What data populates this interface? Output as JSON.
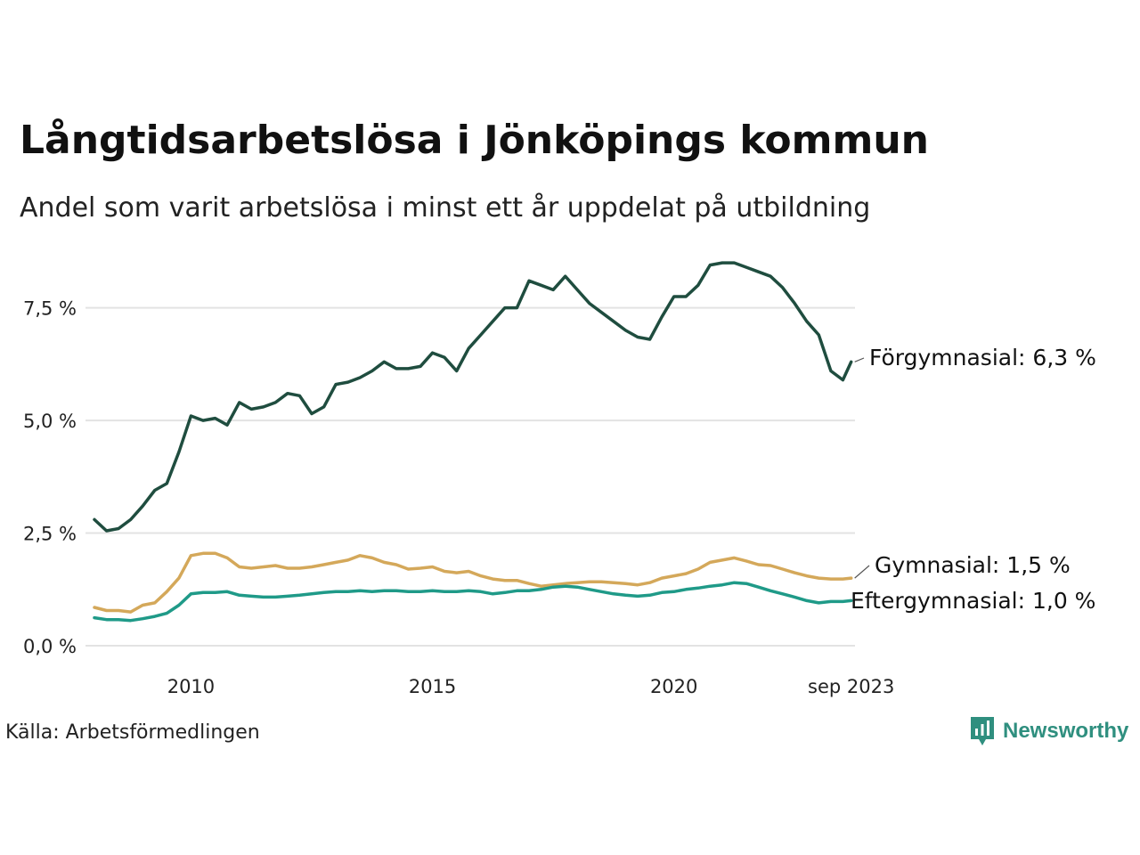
{
  "title": "Långtidsarbetslösa i Jönköpings kommun",
  "subtitle": "Andel som varit arbetslösa i minst ett år uppdelat på utbildning",
  "source": "Källa: Arbetsförmedlingen",
  "brand": {
    "name": "Newsworthy",
    "color": "#2f8f7f",
    "icon": "newsworthy-chart-icon"
  },
  "chart_data": {
    "type": "line",
    "title": "Långtidsarbetslösa i Jönköpings kommun",
    "xlabel": "",
    "ylabel": "",
    "x_range": [
      2008.0,
      2023.75
    ],
    "ylim": [
      0,
      8.6
    ],
    "y_ticks": [
      {
        "value": 0.0,
        "label": "0,0 %"
      },
      {
        "value": 2.5,
        "label": "2,5 %"
      },
      {
        "value": 5.0,
        "label": "5,0 %"
      },
      {
        "value": 7.5,
        "label": "7,5 %"
      }
    ],
    "x_ticks": [
      {
        "value": 2010.0,
        "label": "2010"
      },
      {
        "value": 2015.0,
        "label": "2015"
      },
      {
        "value": 2020.0,
        "label": "2020"
      },
      {
        "value": 2023.67,
        "label": "sep 2023"
      }
    ],
    "grid": true,
    "series": [
      {
        "name": "Förgymnasial",
        "end_label": "Förgymnasial: 6,3 %",
        "color": "#1f4d3f",
        "x": [
          2008.0,
          2008.25,
          2008.5,
          2008.75,
          2009.0,
          2009.25,
          2009.5,
          2009.75,
          2010.0,
          2010.25,
          2010.5,
          2010.75,
          2011.0,
          2011.25,
          2011.5,
          2011.75,
          2012.0,
          2012.25,
          2012.5,
          2012.75,
          2013.0,
          2013.25,
          2013.5,
          2013.75,
          2014.0,
          2014.25,
          2014.5,
          2014.75,
          2015.0,
          2015.25,
          2015.5,
          2015.75,
          2016.0,
          2016.25,
          2016.5,
          2016.75,
          2017.0,
          2017.25,
          2017.5,
          2017.75,
          2018.0,
          2018.25,
          2018.5,
          2018.75,
          2019.0,
          2019.25,
          2019.5,
          2019.75,
          2020.0,
          2020.25,
          2020.5,
          2020.75,
          2021.0,
          2021.25,
          2021.5,
          2021.75,
          2022.0,
          2022.25,
          2022.5,
          2022.75,
          2023.0,
          2023.25,
          2023.5,
          2023.67
        ],
        "values": [
          2.8,
          2.55,
          2.6,
          2.8,
          3.1,
          3.45,
          3.6,
          4.3,
          5.1,
          5.0,
          5.05,
          4.9,
          5.4,
          5.25,
          5.3,
          5.4,
          5.6,
          5.55,
          5.15,
          5.3,
          5.8,
          5.85,
          5.95,
          6.1,
          6.3,
          6.15,
          6.15,
          6.2,
          6.5,
          6.4,
          6.1,
          6.6,
          6.9,
          7.2,
          7.5,
          7.5,
          8.1,
          8.0,
          7.9,
          8.2,
          7.9,
          7.6,
          7.4,
          7.2,
          7.0,
          6.85,
          6.8,
          7.3,
          7.75,
          7.75,
          8.0,
          8.45,
          8.5,
          8.5,
          8.4,
          8.3,
          8.2,
          7.95,
          7.6,
          7.2,
          6.9,
          6.1,
          5.9,
          6.3
        ]
      },
      {
        "name": "Gymnasial",
        "end_label": "Gymnasial: 1,5 %",
        "color": "#d4a85a",
        "x": [
          2008.0,
          2008.25,
          2008.5,
          2008.75,
          2009.0,
          2009.25,
          2009.5,
          2009.75,
          2010.0,
          2010.25,
          2010.5,
          2010.75,
          2011.0,
          2011.25,
          2011.5,
          2011.75,
          2012.0,
          2012.25,
          2012.5,
          2012.75,
          2013.0,
          2013.25,
          2013.5,
          2013.75,
          2014.0,
          2014.25,
          2014.5,
          2014.75,
          2015.0,
          2015.25,
          2015.5,
          2015.75,
          2016.0,
          2016.25,
          2016.5,
          2016.75,
          2017.0,
          2017.25,
          2017.5,
          2017.75,
          2018.0,
          2018.25,
          2018.5,
          2018.75,
          2019.0,
          2019.25,
          2019.5,
          2019.75,
          2020.0,
          2020.25,
          2020.5,
          2020.75,
          2021.0,
          2021.25,
          2021.5,
          2021.75,
          2022.0,
          2022.25,
          2022.5,
          2022.75,
          2023.0,
          2023.25,
          2023.5,
          2023.67
        ],
        "values": [
          0.85,
          0.78,
          0.78,
          0.75,
          0.9,
          0.95,
          1.2,
          1.5,
          2.0,
          2.05,
          2.05,
          1.95,
          1.75,
          1.72,
          1.75,
          1.78,
          1.72,
          1.72,
          1.75,
          1.8,
          1.85,
          1.9,
          2.0,
          1.95,
          1.85,
          1.8,
          1.7,
          1.72,
          1.75,
          1.65,
          1.62,
          1.65,
          1.55,
          1.48,
          1.45,
          1.45,
          1.38,
          1.32,
          1.35,
          1.38,
          1.4,
          1.42,
          1.42,
          1.4,
          1.38,
          1.35,
          1.4,
          1.5,
          1.55,
          1.6,
          1.7,
          1.85,
          1.9,
          1.95,
          1.88,
          1.8,
          1.78,
          1.7,
          1.62,
          1.55,
          1.5,
          1.48,
          1.48,
          1.5
        ]
      },
      {
        "name": "Eftergymnasial",
        "end_label": "Eftergymnasial: 1,0 %",
        "color": "#1f9a88",
        "x": [
          2008.0,
          2008.25,
          2008.5,
          2008.75,
          2009.0,
          2009.25,
          2009.5,
          2009.75,
          2010.0,
          2010.25,
          2010.5,
          2010.75,
          2011.0,
          2011.25,
          2011.5,
          2011.75,
          2012.0,
          2012.25,
          2012.5,
          2012.75,
          2013.0,
          2013.25,
          2013.5,
          2013.75,
          2014.0,
          2014.25,
          2014.5,
          2014.75,
          2015.0,
          2015.25,
          2015.5,
          2015.75,
          2016.0,
          2016.25,
          2016.5,
          2016.75,
          2017.0,
          2017.25,
          2017.5,
          2017.75,
          2018.0,
          2018.25,
          2018.5,
          2018.75,
          2019.0,
          2019.25,
          2019.5,
          2019.75,
          2020.0,
          2020.25,
          2020.5,
          2020.75,
          2021.0,
          2021.25,
          2021.5,
          2021.75,
          2022.0,
          2022.25,
          2022.5,
          2022.75,
          2023.0,
          2023.25,
          2023.5,
          2023.67
        ],
        "values": [
          0.62,
          0.58,
          0.58,
          0.56,
          0.6,
          0.65,
          0.72,
          0.9,
          1.15,
          1.18,
          1.18,
          1.2,
          1.12,
          1.1,
          1.08,
          1.08,
          1.1,
          1.12,
          1.15,
          1.18,
          1.2,
          1.2,
          1.22,
          1.2,
          1.22,
          1.22,
          1.2,
          1.2,
          1.22,
          1.2,
          1.2,
          1.22,
          1.2,
          1.15,
          1.18,
          1.22,
          1.22,
          1.25,
          1.3,
          1.32,
          1.3,
          1.25,
          1.2,
          1.15,
          1.12,
          1.1,
          1.12,
          1.18,
          1.2,
          1.25,
          1.28,
          1.32,
          1.35,
          1.4,
          1.38,
          1.3,
          1.22,
          1.15,
          1.08,
          1.0,
          0.95,
          0.98,
          0.98,
          1.0
        ]
      }
    ]
  }
}
